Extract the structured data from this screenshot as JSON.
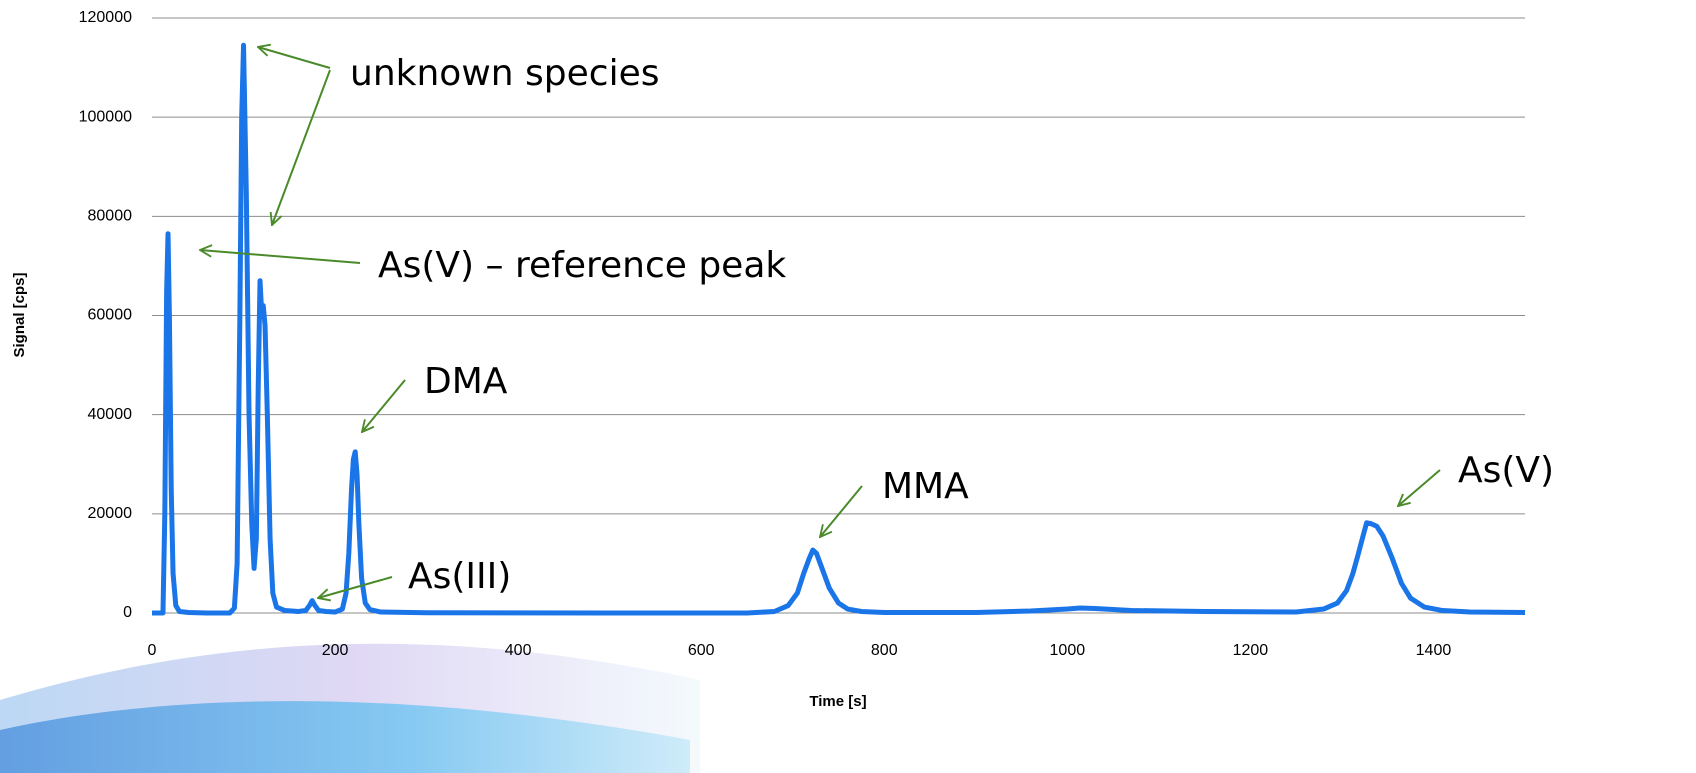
{
  "chart_data": {
    "type": "line",
    "x_label": "Time [s]",
    "y_label": "Signal [cps]",
    "x": [
      0,
      12,
      14,
      16,
      17.5,
      19,
      21,
      23,
      26,
      30,
      40,
      60,
      85,
      90,
      93,
      96,
      98,
      100,
      103,
      106,
      109,
      111.5,
      114,
      116,
      118,
      120,
      121.5,
      123.5,
      126,
      129,
      132,
      136,
      145,
      160,
      168,
      172,
      175,
      178,
      182,
      190,
      200,
      208,
      212,
      215,
      218,
      220,
      222,
      224,
      226,
      229,
      233,
      238,
      250,
      300,
      500,
      650,
      680,
      695,
      705,
      712,
      718,
      722,
      726,
      732,
      740,
      750,
      760,
      775,
      800,
      900,
      960,
      1000,
      1014,
      1030,
      1070,
      1150,
      1250,
      1280,
      1295,
      1305,
      1312,
      1318,
      1323,
      1327,
      1332,
      1338,
      1345,
      1355,
      1365,
      1375,
      1390,
      1410,
      1440,
      1500
    ],
    "values": [
      0,
      0,
      20000,
      65000,
      76500,
      60000,
      25000,
      8000,
      1500,
      300,
      100,
      0,
      0,
      1000,
      10000,
      60000,
      100000,
      114500,
      85000,
      40000,
      18000,
      9000,
      15000,
      45000,
      67000,
      60000,
      62000,
      58000,
      40000,
      15000,
      4000,
      1200,
      500,
      300,
      500,
      1500,
      2500,
      1500,
      500,
      300,
      200,
      800,
      4000,
      12000,
      25000,
      31000,
      32500,
      28000,
      18000,
      7000,
      2000,
      700,
      200,
      50,
      0,
      0,
      300,
      1500,
      4000,
      8000,
      11000,
      12700,
      12000,
      9000,
      5000,
      2000,
      800,
      300,
      100,
      100,
      400,
      800,
      1000,
      900,
      500,
      300,
      200,
      800,
      2000,
      4500,
      8000,
      12000,
      15500,
      18200,
      18000,
      17500,
      15500,
      11000,
      6000,
      3000,
      1200,
      500,
      200,
      100
    ],
    "color": "#1a75e8",
    "xlim": [
      0,
      1500
    ],
    "xticks": [
      0,
      200,
      400,
      600,
      800,
      1000,
      1200,
      1400
    ],
    "ylim": [
      0,
      120000
    ],
    "yticks": [
      0,
      20000,
      40000,
      60000,
      80000,
      100000,
      120000
    ],
    "grid": true,
    "annotations": [
      "unknown species",
      "As(V) – reference peak",
      "DMA",
      "As(III)",
      "MMA",
      "As(V)"
    ]
  }
}
